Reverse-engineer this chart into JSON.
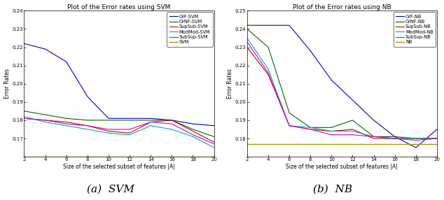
{
  "x": [
    2,
    4,
    6,
    8,
    10,
    12,
    14,
    16,
    18,
    20
  ],
  "svm_GrF": [
    0.222,
    0.219,
    0.212,
    0.193,
    0.181,
    0.181,
    0.181,
    0.18,
    0.178,
    0.177
  ],
  "svm_GrNF": [
    0.185,
    0.183,
    0.181,
    0.18,
    0.18,
    0.18,
    0.18,
    0.18,
    0.175,
    0.171
  ],
  "svm_SupSub": [
    0.181,
    0.18,
    0.179,
    0.177,
    0.174,
    0.173,
    0.179,
    0.18,
    0.174,
    0.168
  ],
  "svm_ModMod": [
    0.182,
    0.179,
    0.177,
    0.175,
    0.173,
    0.172,
    0.177,
    0.175,
    0.171,
    0.165
  ],
  "svm_SubSup": [
    0.181,
    0.18,
    0.178,
    0.177,
    0.175,
    0.175,
    0.179,
    0.178,
    0.172,
    0.167
  ],
  "svm_SVM": [
    0.16,
    0.16,
    0.16,
    0.16,
    0.16,
    0.16,
    0.16,
    0.16,
    0.16,
    0.16
  ],
  "nb_GrF": [
    0.242,
    0.242,
    0.242,
    0.228,
    0.212,
    0.201,
    0.19,
    0.181,
    0.175,
    0.185
  ],
  "nb_GrNF": [
    0.24,
    0.23,
    0.194,
    0.186,
    0.186,
    0.19,
    0.181,
    0.181,
    0.18,
    0.18
  ],
  "nb_SupSub": [
    0.23,
    0.215,
    0.187,
    0.185,
    0.184,
    0.185,
    0.18,
    0.18,
    0.18,
    0.18
  ],
  "nb_ModMod": [
    0.235,
    0.218,
    0.187,
    0.186,
    0.184,
    0.184,
    0.181,
    0.18,
    0.18,
    0.18
  ],
  "nb_SubSup": [
    0.233,
    0.216,
    0.187,
    0.185,
    0.182,
    0.182,
    0.181,
    0.18,
    0.179,
    0.18
  ],
  "nb_NB": [
    0.177,
    0.177,
    0.177,
    0.177,
    0.177,
    0.177,
    0.177,
    0.177,
    0.177,
    0.177
  ],
  "svm_ylim": [
    0.16,
    0.24
  ],
  "nb_ylim": [
    0.17,
    0.25
  ],
  "svm_yticks": [
    0.17,
    0.18,
    0.19,
    0.2,
    0.21,
    0.22,
    0.23,
    0.24
  ],
  "nb_yticks": [
    0.18,
    0.19,
    0.2,
    0.21,
    0.22,
    0.23,
    0.24,
    0.25
  ],
  "colors": {
    "GrF": "#0000CC",
    "GrNF": "#006600",
    "SupSub": "#CC0000",
    "ModMod": "#00AAAA",
    "SubSup": "#CC00CC",
    "base": "#999900"
  },
  "title_svm": "Plot of the Error rates using SVM",
  "title_nb": "Plot of the Error rates using NB",
  "xlabel": "Size of the selected subset of features |A|",
  "ylabel": "Error Rates",
  "legend_svm": [
    "GrF-SVM",
    "GrNF-SVM",
    "SupSub-SVM",
    "ModMod-SVM",
    "SubSup-SVM",
    "SVM"
  ],
  "legend_nb": [
    "GrF-NB",
    "GrNF-NB",
    "SupSub-NB",
    "ModMod-NB",
    "SubSup-NB",
    "NB"
  ],
  "caption_svm": "(a)  SVM",
  "caption_nb": "(b)  NB",
  "xticks": [
    2,
    4,
    6,
    8,
    10,
    12,
    14,
    16,
    18,
    20
  ],
  "fig_width": 6.34,
  "fig_height": 2.86,
  "dpi": 100,
  "title_fontsize": 6.5,
  "label_fontsize": 5.5,
  "tick_fontsize": 5.0,
  "legend_fontsize": 4.8,
  "caption_fontsize": 11,
  "linewidth": 0.8
}
